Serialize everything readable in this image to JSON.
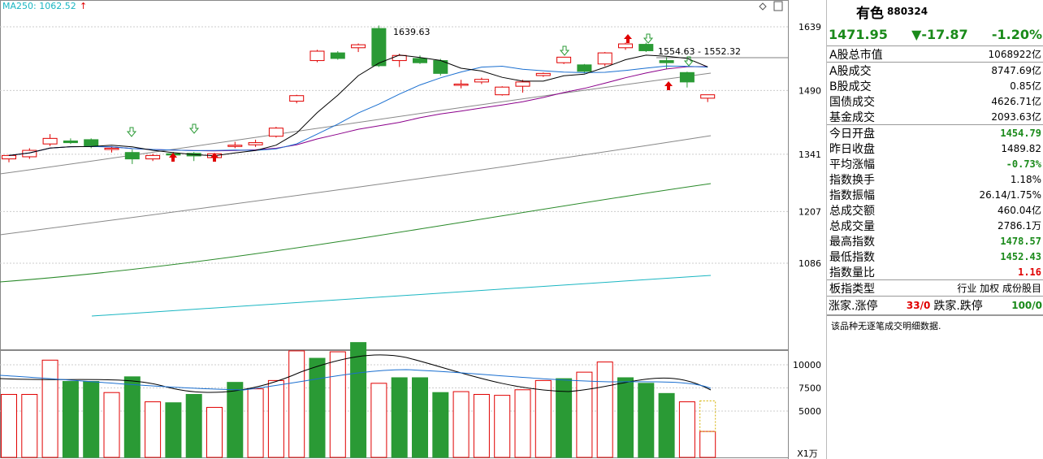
{
  "ma_label": "MA250: 1062.52",
  "ma_label_arrow": "↑",
  "ma_color": "#1ab6c2",
  "chart_data": {
    "type": "candlestick",
    "price_ticks": [
      1639,
      1490,
      1341,
      1207,
      1086
    ],
    "volume_ticks": [
      10000,
      7500,
      5000
    ],
    "volume_unit": "X1万",
    "annotation_high": "1639.63",
    "annotation_range": "1554.63 - 1552.32",
    "candles": [
      {
        "o": 1330,
        "h": 1340,
        "l": 1322,
        "c": 1338
      },
      {
        "o": 1335,
        "h": 1355,
        "l": 1330,
        "c": 1350
      },
      {
        "o": 1365,
        "h": 1388,
        "l": 1360,
        "c": 1378
      },
      {
        "o": 1372,
        "h": 1378,
        "l": 1365,
        "c": 1368
      },
      {
        "o": 1375,
        "h": 1378,
        "l": 1355,
        "c": 1360
      },
      {
        "o": 1352,
        "h": 1358,
        "l": 1345,
        "c": 1355
      },
      {
        "o": 1345,
        "h": 1352,
        "l": 1318,
        "c": 1330
      },
      {
        "o": 1330,
        "h": 1342,
        "l": 1325,
        "c": 1338
      },
      {
        "o": 1342,
        "h": 1346,
        "l": 1330,
        "c": 1340
      },
      {
        "o": 1343,
        "h": 1346,
        "l": 1325,
        "c": 1337
      },
      {
        "o": 1333,
        "h": 1343,
        "l": 1330,
        "c": 1342
      },
      {
        "o": 1362,
        "h": 1370,
        "l": 1355,
        "c": 1362
      },
      {
        "o": 1363,
        "h": 1375,
        "l": 1358,
        "c": 1368
      },
      {
        "o": 1383,
        "h": 1405,
        "l": 1380,
        "c": 1402
      },
      {
        "o": 1465,
        "h": 1480,
        "l": 1460,
        "c": 1478
      },
      {
        "o": 1560,
        "h": 1585,
        "l": 1556,
        "c": 1582
      },
      {
        "o": 1578,
        "h": 1582,
        "l": 1562,
        "c": 1565
      },
      {
        "o": 1590,
        "h": 1600,
        "l": 1580,
        "c": 1597
      },
      {
        "o": 1635,
        "h": 1642,
        "l": 1545,
        "c": 1548
      },
      {
        "o": 1560,
        "h": 1576,
        "l": 1545,
        "c": 1572
      },
      {
        "o": 1565,
        "h": 1572,
        "l": 1552,
        "c": 1555
      },
      {
        "o": 1560,
        "h": 1564,
        "l": 1525,
        "c": 1530
      },
      {
        "o": 1505,
        "h": 1515,
        "l": 1495,
        "c": 1505
      },
      {
        "o": 1510,
        "h": 1520,
        "l": 1505,
        "c": 1516
      },
      {
        "o": 1480,
        "h": 1500,
        "l": 1478,
        "c": 1498
      },
      {
        "o": 1500,
        "h": 1515,
        "l": 1485,
        "c": 1510
      },
      {
        "o": 1525,
        "h": 1532,
        "l": 1522,
        "c": 1530
      },
      {
        "o": 1555,
        "h": 1568,
        "l": 1552,
        "c": 1568
      },
      {
        "o": 1550,
        "h": 1552,
        "l": 1530,
        "c": 1535
      },
      {
        "o": 1552,
        "h": 1580,
        "l": 1547,
        "c": 1578
      },
      {
        "o": 1590,
        "h": 1602,
        "l": 1585,
        "c": 1599
      },
      {
        "o": 1598,
        "h": 1602,
        "l": 1580,
        "c": 1583
      },
      {
        "o": 1560,
        "h": 1568,
        "l": 1540,
        "c": 1555
      },
      {
        "o": 1532,
        "h": 1534,
        "l": 1497,
        "c": 1510
      },
      {
        "o": 1472,
        "h": 1480,
        "l": 1463,
        "c": 1480
      }
    ],
    "volumes": [
      {
        "v": 6800,
        "up": true
      },
      {
        "v": 6800,
        "up": true
      },
      {
        "v": 10500,
        "up": true
      },
      {
        "v": 8200,
        "up": false
      },
      {
        "v": 8200,
        "up": false
      },
      {
        "v": 7000,
        "up": true
      },
      {
        "v": 8700,
        "up": false
      },
      {
        "v": 6000,
        "up": true
      },
      {
        "v": 5900,
        "up": false
      },
      {
        "v": 6800,
        "up": false
      },
      {
        "v": 5400,
        "up": true
      },
      {
        "v": 8100,
        "up": false
      },
      {
        "v": 7400,
        "up": true
      },
      {
        "v": 8300,
        "up": true
      },
      {
        "v": 11500,
        "up": true
      },
      {
        "v": 10700,
        "up": false
      },
      {
        "v": 11400,
        "up": true
      },
      {
        "v": 12400,
        "up": false
      },
      {
        "v": 8000,
        "up": true
      },
      {
        "v": 8600,
        "up": false
      },
      {
        "v": 8600,
        "up": false
      },
      {
        "v": 7000,
        "up": false
      },
      {
        "v": 7100,
        "up": true
      },
      {
        "v": 6800,
        "up": true
      },
      {
        "v": 6700,
        "up": true
      },
      {
        "v": 7300,
        "up": true
      },
      {
        "v": 8300,
        "up": true
      },
      {
        "v": 8500,
        "up": false
      },
      {
        "v": 9200,
        "up": true
      },
      {
        "v": 10300,
        "up": true
      },
      {
        "v": 8600,
        "up": false
      },
      {
        "v": 8000,
        "up": false
      },
      {
        "v": 6900,
        "up": false
      },
      {
        "v": 6000,
        "up": true
      },
      {
        "v": 2800,
        "up": true
      }
    ],
    "colors": {
      "up": "#e00000",
      "down": "#2a9a35",
      "ma5": "#000000",
      "ma10": "#1a6fd0",
      "ma20": "#8b008b",
      "ma60": "#888888",
      "ma120": "#2a8a2a",
      "ma250": "#1ab6c2"
    }
  },
  "sidebar": {
    "name": "有色",
    "code": "880324",
    "price": "1471.95",
    "change": "▼-17.87",
    "pct": "-1.20%",
    "rows": [
      {
        "label": "A股总市值",
        "value": "1068922亿",
        "cls": "plain",
        "sep": true
      },
      {
        "label": "A股成交",
        "value": "8747.69亿",
        "cls": "plain"
      },
      {
        "label": "B股成交",
        "value": "0.85亿",
        "cls": "plain"
      },
      {
        "label": "国债成交",
        "value": "4626.71亿",
        "cls": "plain"
      },
      {
        "label": "基金成交",
        "value": "2093.63亿",
        "cls": "plain",
        "sep": true
      },
      {
        "label": "今日开盘",
        "value": "1454.79",
        "cls": "dn"
      },
      {
        "label": "昨日收盘",
        "value": "1489.82",
        "cls": "plain"
      },
      {
        "label": "平均涨幅",
        "value": "-0.73%",
        "cls": "dn"
      },
      {
        "label": "指数换手",
        "value": "1.18%",
        "cls": "plain"
      },
      {
        "label": "指数振幅",
        "value": "26.14/1.75%",
        "cls": "plain"
      },
      {
        "label": "总成交额",
        "value": "460.04亿",
        "cls": "plain"
      },
      {
        "label": "总成交量",
        "value": "2786.1万",
        "cls": "plain"
      },
      {
        "label": "最高指数",
        "value": "1478.57",
        "cls": "dn"
      },
      {
        "label": "最低指数",
        "value": "1452.43",
        "cls": "dn"
      },
      {
        "label": "指数量比",
        "value": "1.16",
        "cls": "up",
        "sep": true
      },
      {
        "label": "板指类型",
        "value": "行业 加权 成份股目",
        "cls": "plain",
        "sep": true
      }
    ],
    "rise_label": "涨家.涨停",
    "rise_value": "33/0",
    "fall_label": "跌家.跌停",
    "fall_value": "100/0",
    "note": "该品种无逐笔成交明细数据."
  }
}
